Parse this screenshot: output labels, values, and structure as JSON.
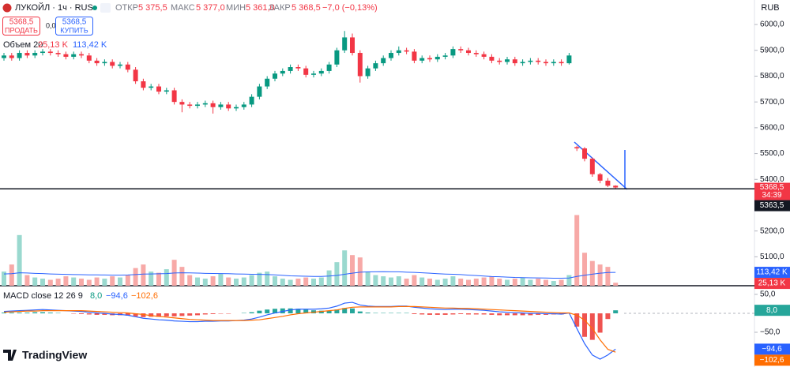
{
  "header": {
    "symbol": "ЛУКОЙЛ · 1ч · RUS",
    "ohlc": [
      {
        "label": "ОТКР",
        "value": "5 375,5"
      },
      {
        "label": "МАКС",
        "value": "5 377,0"
      },
      {
        "label": "МИН",
        "value": "5 361,0"
      },
      {
        "label": "ЗАКР",
        "value": "5 368,5"
      }
    ],
    "change": "−7,0 (−0,13%)",
    "sell": {
      "price": "5368,5",
      "label": "ПРОДАТЬ"
    },
    "spread": "0,0",
    "buy": {
      "price": "5368,5",
      "label": "КУПИТЬ"
    },
    "currency": "RUB",
    "logo": "TradingView"
  },
  "chart_data": [
    {
      "type": "candlestick",
      "up_color": "#089981",
      "down_color": "#f23645",
      "open": [
        5870,
        5880,
        5870,
        5890,
        5880,
        5890,
        5895,
        5890,
        5885,
        5875,
        5885,
        5880,
        5860,
        5850,
        5855,
        5840,
        5845,
        5825,
        5780,
        5755,
        5760,
        5740,
        5745,
        5700,
        5690,
        5685,
        5690,
        5695,
        5680,
        5690,
        5675,
        5680,
        5690,
        5720,
        5760,
        5790,
        5810,
        5820,
        5835,
        5830,
        5805,
        5810,
        5820,
        5845,
        5900,
        5950,
        5890,
        5800,
        5830,
        5850,
        5870,
        5890,
        5900,
        5895,
        5860,
        5870,
        5865,
        5875,
        5880,
        5905,
        5900,
        5890,
        5885,
        5875,
        5860,
        5855,
        5865,
        5850,
        5855,
        5860,
        5855,
        5850,
        5855,
        5850,
        5525,
        5520,
        5480,
        5420,
        5395,
        5375.5
      ],
      "high": [
        5890,
        5890,
        5900,
        5900,
        5900,
        5905,
        5905,
        5900,
        5895,
        5895,
        5895,
        5890,
        5870,
        5865,
        5865,
        5855,
        5855,
        5835,
        5790,
        5770,
        5770,
        5755,
        5755,
        5710,
        5700,
        5700,
        5705,
        5705,
        5700,
        5700,
        5690,
        5700,
        5730,
        5770,
        5800,
        5820,
        5830,
        5845,
        5845,
        5840,
        5820,
        5830,
        5855,
        5910,
        5975,
        5965,
        5900,
        5840,
        5860,
        5880,
        5900,
        5915,
        5910,
        5905,
        5880,
        5880,
        5885,
        5890,
        5915,
        5915,
        5910,
        5900,
        5895,
        5885,
        5870,
        5875,
        5875,
        5865,
        5870,
        5870,
        5865,
        5865,
        5865,
        5890,
        5530,
        5525,
        5485,
        5425,
        5405,
        5377
      ],
      "low": [
        5860,
        5860,
        5860,
        5870,
        5870,
        5880,
        5880,
        5875,
        5865,
        5865,
        5870,
        5850,
        5840,
        5840,
        5830,
        5830,
        5815,
        5770,
        5745,
        5745,
        5730,
        5730,
        5690,
        5660,
        5675,
        5675,
        5680,
        5655,
        5670,
        5665,
        5665,
        5670,
        5680,
        5710,
        5750,
        5780,
        5800,
        5810,
        5820,
        5795,
        5795,
        5800,
        5810,
        5835,
        5890,
        5880,
        5775,
        5790,
        5820,
        5840,
        5860,
        5880,
        5885,
        5850,
        5850,
        5855,
        5855,
        5865,
        5870,
        5890,
        5880,
        5875,
        5865,
        5850,
        5845,
        5845,
        5840,
        5840,
        5845,
        5845,
        5840,
        5840,
        5840,
        5845,
        5510,
        5470,
        5410,
        5385,
        5370,
        5361
      ],
      "close": [
        5880,
        5870,
        5890,
        5880,
        5890,
        5895,
        5890,
        5885,
        5875,
        5885,
        5880,
        5860,
        5850,
        5855,
        5840,
        5845,
        5825,
        5780,
        5755,
        5760,
        5740,
        5745,
        5700,
        5690,
        5685,
        5690,
        5695,
        5680,
        5690,
        5675,
        5680,
        5690,
        5720,
        5760,
        5790,
        5810,
        5820,
        5835,
        5830,
        5805,
        5810,
        5820,
        5845,
        5900,
        5950,
        5890,
        5800,
        5830,
        5850,
        5870,
        5890,
        5900,
        5895,
        5860,
        5870,
        5865,
        5875,
        5880,
        5905,
        5900,
        5890,
        5885,
        5875,
        5860,
        5855,
        5865,
        5850,
        5855,
        5860,
        5855,
        5850,
        5855,
        5850,
        5880,
        5520,
        5480,
        5420,
        5395,
        5375.5,
        5368.5
      ],
      "ylim": [
        4988,
        6095
      ],
      "yticks": [
        {
          "value": 6000,
          "label": "6000,0"
        },
        {
          "value": 5900,
          "label": "5900,0"
        },
        {
          "value": 5800,
          "label": "5800,0"
        },
        {
          "value": 5700,
          "label": "5700,0"
        },
        {
          "value": 5600,
          "label": "5600,0"
        },
        {
          "value": 5500,
          "label": "5500,0"
        },
        {
          "value": 5400,
          "label": "5400,0"
        },
        {
          "value": 5200,
          "label": "5200,0"
        },
        {
          "value": 5100,
          "label": "5100,0"
        }
      ],
      "last_price": {
        "value": 5368.5,
        "label": "5368,5"
      },
      "countdown": "34:39",
      "price_line": {
        "value": 5363.5,
        "label": "5363,5"
      }
    },
    {
      "type": "volume",
      "title": "Объем 20",
      "up_color": "#9ad9cf",
      "down_color": "#f7a9a7",
      "values": [
        120,
        180,
        430,
        90,
        70,
        60,
        50,
        60,
        80,
        70,
        60,
        50,
        70,
        60,
        80,
        70,
        90,
        150,
        180,
        120,
        110,
        140,
        220,
        160,
        90,
        70,
        60,
        80,
        100,
        70,
        60,
        70,
        90,
        110,
        120,
        80,
        60,
        50,
        60,
        70,
        60,
        70,
        130,
        200,
        300,
        260,
        240,
        120,
        90,
        80,
        70,
        80,
        60,
        90,
        70,
        60,
        50,
        60,
        80,
        60,
        50,
        60,
        70,
        80,
        60,
        50,
        60,
        70,
        50,
        60,
        50,
        40,
        50,
        90,
        600,
        280,
        210,
        180,
        160,
        25.13
      ],
      "last_label": "25,13 K",
      "last_color": "#f23645",
      "ma": {
        "color": "#2962ff",
        "values": [
          100,
          102,
          110,
          108,
          105,
          103,
          100,
          98,
          96,
          95,
          94,
          92,
          92,
          91,
          90,
          90,
          91,
          95,
          99,
          100,
          101,
          103,
          108,
          110,
          109,
          107,
          105,
          104,
          103,
          102,
          100,
          99,
          97,
          96,
          95,
          92,
          88,
          84,
          82,
          80,
          79,
          79,
          82,
          87,
          97,
          106,
          115,
          117,
          118,
          119,
          118,
          118,
          115,
          113,
          110,
          106,
          102,
          99,
          97,
          95,
          90,
          86,
          82,
          78,
          76,
          73,
          70,
          69,
          67,
          66,
          65,
          64,
          64,
          65,
          79,
          89,
          98,
          106,
          112,
          113.42
        ],
        "last_label": "113,42 K"
      },
      "ylim": [
        0,
        650
      ]
    },
    {
      "type": "macd",
      "title": "MACD close 12 26 9",
      "histogram": {
        "up_color": "#26a69a",
        "down_color": "#ef5350",
        "values": [
          2,
          2,
          2,
          2,
          3,
          3,
          2,
          1,
          0,
          -1,
          -2,
          -3,
          -4,
          -4,
          -5,
          -5,
          -6,
          -8,
          -10,
          -9,
          -9,
          -8,
          -8,
          -7,
          -6,
          -5,
          -3,
          -2,
          -1,
          -1,
          0,
          1,
          3,
          7,
          10,
          12,
          13,
          13,
          12,
          10,
          8,
          7,
          7,
          10,
          14,
          13,
          5,
          2,
          1,
          1,
          1,
          1,
          1,
          -2,
          -3,
          -4,
          -4,
          -4,
          -3,
          -2,
          -3,
          -3,
          -3,
          -4,
          -5,
          -5,
          -5,
          -5,
          -5,
          -4,
          -4,
          -3,
          -3,
          0,
          -35,
          -62,
          -70,
          -51,
          -15,
          8
        ],
        "last_label": "8,0"
      },
      "series": [
        {
          "color": "#2962ff",
          "last_label": "−94,6",
          "values": [
            5,
            6,
            7,
            8,
            9,
            10,
            9,
            8,
            7,
            6,
            5,
            3,
            1,
            0,
            -2,
            -3,
            -5,
            -9,
            -13,
            -15,
            -17,
            -18,
            -20,
            -21,
            -22,
            -22,
            -21,
            -21,
            -20,
            -20,
            -19,
            -18,
            -15,
            -10,
            -4,
            1,
            5,
            9,
            11,
            11,
            11,
            12,
            14,
            19,
            27,
            29,
            22,
            19,
            18,
            18,
            18,
            19,
            19,
            16,
            14,
            12,
            11,
            10,
            11,
            11,
            10,
            9,
            8,
            6,
            4,
            3,
            2,
            1,
            0,
            0,
            -1,
            -1,
            -2,
            1,
            -40,
            -80,
            -110,
            -121,
            -110,
            -94.6
          ]
        },
        {
          "color": "#ff6d00",
          "last_label": "−102,6",
          "values": [
            3,
            4,
            5,
            6,
            6,
            7,
            7,
            7,
            7,
            7,
            7,
            6,
            5,
            4,
            3,
            2,
            1,
            -1,
            -3,
            -6,
            -8,
            -10,
            -12,
            -14,
            -16,
            -17,
            -18,
            -19,
            -19,
            -19,
            -19,
            -19,
            -18,
            -17,
            -14,
            -11,
            -8,
            -4,
            -1,
            1,
            3,
            5,
            7,
            9,
            13,
            16,
            17,
            17,
            17,
            17,
            17,
            18,
            18,
            18,
            17,
            16,
            15,
            14,
            14,
            13,
            13,
            12,
            11,
            10,
            9,
            8,
            7,
            6,
            5,
            4,
            3,
            2,
            1,
            1,
            -5,
            -18,
            -40,
            -70,
            -95,
            -102.6
          ]
        }
      ],
      "ylim": [
        -141.7,
        66.7
      ],
      "yticks": [
        {
          "value": 50,
          "label": "50,0"
        },
        {
          "value": -50,
          "label": "−50,0"
        }
      ]
    }
  ]
}
